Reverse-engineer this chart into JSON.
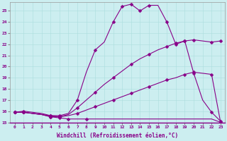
{
  "xlabel": "Windchill (Refroidissement éolien,°C)",
  "bg_color": "#cceef0",
  "line_color": "#880088",
  "xlim": [
    -0.5,
    23.5
  ],
  "ylim": [
    15,
    25.8
  ],
  "yticks": [
    15,
    16,
    17,
    18,
    19,
    20,
    21,
    22,
    23,
    24,
    25
  ],
  "xticks": [
    0,
    1,
    2,
    3,
    4,
    5,
    6,
    7,
    8,
    9,
    10,
    11,
    12,
    13,
    14,
    15,
    16,
    17,
    18,
    19,
    20,
    21,
    22,
    23
  ],
  "series": [
    {
      "x": [
        0,
        1,
        2,
        3,
        4,
        5,
        6,
        7,
        8,
        9,
        10,
        11,
        12,
        13,
        14,
        15,
        16,
        17,
        18,
        19,
        20,
        21,
        22,
        23
      ],
      "y": [
        15.9,
        16.0,
        15.9,
        15.8,
        15.6,
        15.6,
        15.8,
        17.0,
        19.5,
        21.5,
        22.2,
        24.0,
        25.4,
        25.6,
        25.0,
        25.5,
        25.5,
        24.0,
        22.0,
        22.3,
        19.4,
        17.0,
        15.9,
        15.1
      ],
      "mx": [
        0,
        1,
        4,
        5,
        7,
        9,
        11,
        12,
        13,
        14,
        15,
        17,
        18,
        19,
        20,
        22,
        23
      ],
      "my": [
        15.9,
        16.0,
        15.6,
        15.6,
        17.0,
        21.5,
        24.0,
        25.4,
        25.6,
        25.0,
        25.5,
        24.0,
        22.0,
        22.3,
        19.4,
        15.9,
        15.1
      ]
    },
    {
      "x": [
        0,
        1,
        2,
        3,
        4,
        5,
        6,
        7,
        8,
        9,
        10,
        11,
        12,
        13,
        14,
        15,
        16,
        17,
        18,
        19,
        20,
        21,
        22,
        23
      ],
      "y": [
        15.9,
        15.9,
        15.8,
        15.7,
        15.5,
        15.5,
        15.7,
        16.3,
        17.0,
        17.7,
        18.4,
        19.0,
        19.6,
        20.2,
        20.7,
        21.1,
        21.5,
        21.8,
        22.1,
        22.3,
        22.4,
        22.3,
        22.2,
        22.3
      ],
      "mx": [
        0,
        1,
        4,
        5,
        7,
        9,
        11,
        13,
        15,
        17,
        18,
        19,
        20,
        22,
        23
      ],
      "my": [
        15.9,
        15.9,
        15.5,
        15.5,
        16.3,
        17.7,
        19.0,
        20.2,
        21.1,
        21.8,
        22.1,
        22.3,
        22.4,
        22.2,
        22.3
      ]
    },
    {
      "x": [
        0,
        1,
        2,
        3,
        4,
        5,
        6,
        7,
        8,
        9,
        10,
        11,
        12,
        13,
        14,
        15,
        16,
        17,
        18,
        19,
        20,
        21,
        22,
        23
      ],
      "y": [
        15.9,
        15.9,
        15.8,
        15.7,
        15.6,
        15.5,
        15.6,
        15.8,
        16.1,
        16.4,
        16.7,
        17.0,
        17.3,
        17.6,
        17.9,
        18.2,
        18.5,
        18.8,
        19.0,
        19.3,
        19.5,
        19.4,
        19.3,
        15.0
      ],
      "mx": [
        0,
        1,
        4,
        5,
        7,
        9,
        11,
        13,
        15,
        17,
        19,
        20,
        22,
        23
      ],
      "my": [
        15.9,
        15.9,
        15.6,
        15.5,
        15.8,
        16.4,
        17.0,
        17.6,
        18.2,
        18.8,
        19.3,
        19.5,
        19.3,
        15.0
      ]
    },
    {
      "x": [
        0,
        1,
        2,
        3,
        4,
        5,
        6,
        7,
        8,
        9,
        10,
        11,
        12,
        13,
        14,
        15,
        16,
        17,
        18,
        19,
        20,
        21,
        22,
        23
      ],
      "y": [
        15.9,
        15.9,
        15.8,
        15.7,
        15.5,
        15.4,
        15.3,
        15.3,
        15.3,
        15.3,
        15.3,
        15.3,
        15.3,
        15.3,
        15.3,
        15.3,
        15.3,
        15.3,
        15.3,
        15.3,
        15.3,
        15.3,
        15.3,
        15.0
      ],
      "mx": [
        0,
        1,
        4,
        5,
        6,
        8,
        23
      ],
      "my": [
        15.9,
        15.9,
        15.5,
        15.4,
        15.3,
        15.3,
        15.0
      ]
    }
  ]
}
